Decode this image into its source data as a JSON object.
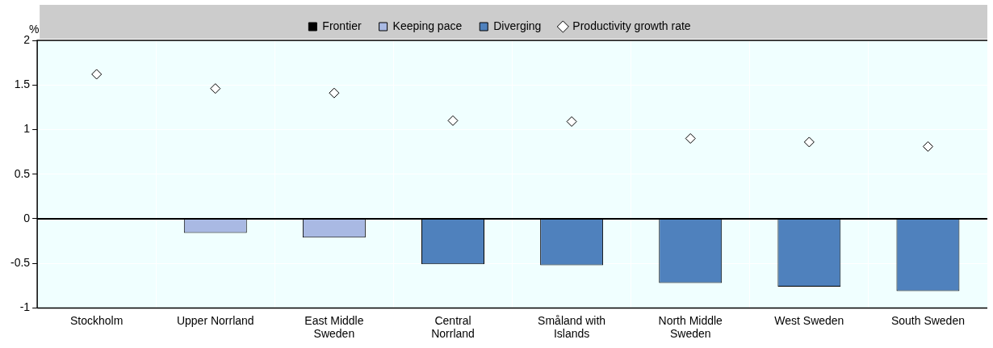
{
  "chart_data": {
    "type": "bar",
    "ylabel": "%",
    "categories": [
      "Stockholm",
      "Upper Norrland",
      "East Middle Sweden",
      "Central Norrland",
      "Småland with Islands",
      "North Middle Sweden",
      "West Sweden",
      "South Sweden"
    ],
    "series": [
      {
        "name": "Frontier",
        "color": "#000000",
        "values": [
          0,
          null,
          null,
          null,
          null,
          null,
          null,
          null
        ]
      },
      {
        "name": "Keeping pace",
        "color": "#a9b9e3",
        "values": [
          null,
          -0.16,
          -0.21,
          null,
          null,
          null,
          null,
          null
        ]
      },
      {
        "name": "Diverging",
        "color": "#4f81bd",
        "values": [
          null,
          null,
          null,
          -0.51,
          -0.52,
          -0.72,
          -0.76,
          -0.81
        ]
      },
      {
        "name": "Productivity growth rate",
        "type": "scatter",
        "marker": "diamond",
        "color": "#ffffff",
        "values": [
          1.62,
          1.46,
          1.41,
          1.1,
          1.09,
          0.9,
          0.86,
          0.81
        ]
      }
    ],
    "ylim": [
      -1,
      2
    ],
    "yticks": [
      -1,
      -0.5,
      0,
      0.5,
      1,
      1.5,
      2
    ],
    "grid": true,
    "legend": "top"
  }
}
